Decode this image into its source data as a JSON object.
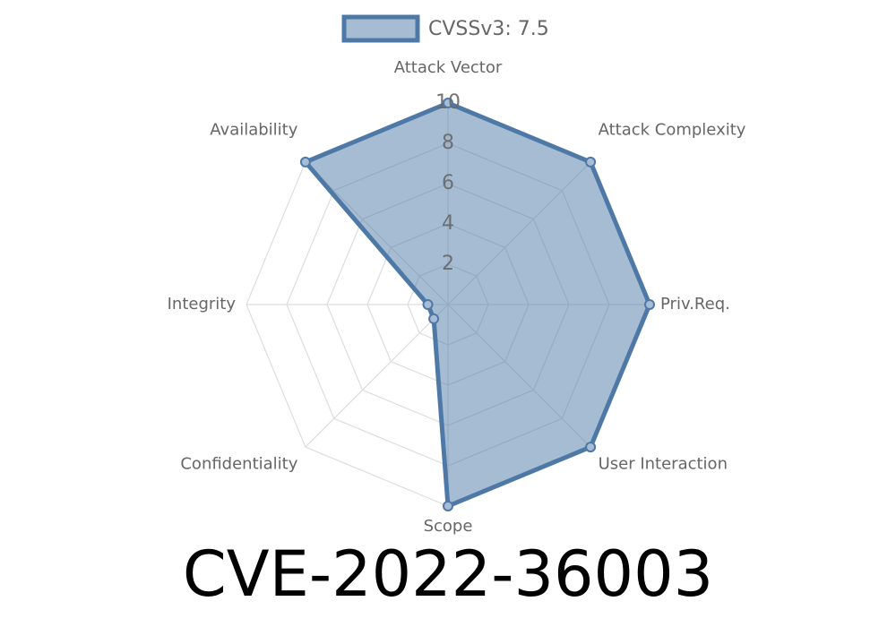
{
  "chart_data": {
    "type": "radar",
    "title": "CVE-2022-36003",
    "categories": [
      "Attack Vector",
      "Attack Complexity",
      "Priv.Req.",
      "User Interaction",
      "Scope",
      "Confidentiality",
      "Integrity",
      "Availability"
    ],
    "series": [
      {
        "name": "CVSSv3: 7.5",
        "color": "#4e79a7",
        "values": [
          10,
          10,
          10,
          10,
          10,
          1,
          1,
          10
        ]
      }
    ],
    "ylim": [
      0,
      10
    ],
    "yticks": [
      2,
      4,
      6,
      8,
      10
    ],
    "grid": true
  }
}
